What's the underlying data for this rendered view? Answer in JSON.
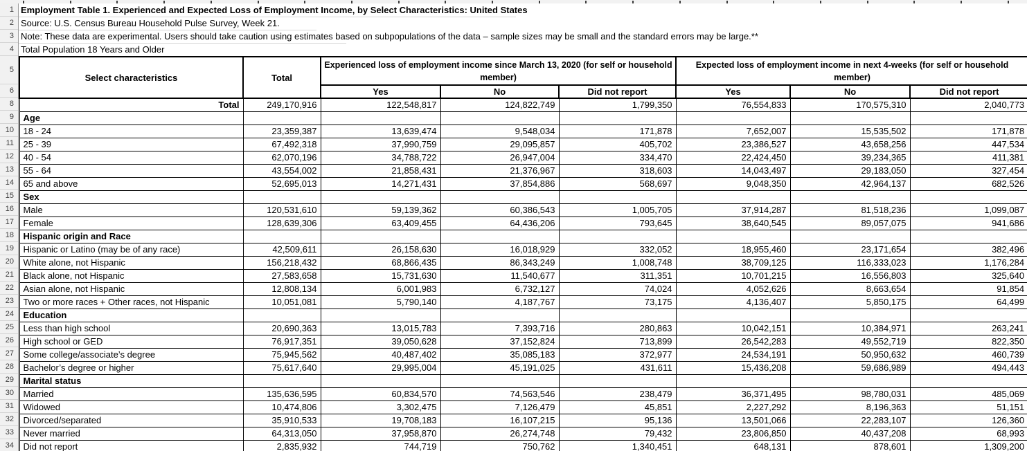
{
  "colors": {
    "table_border": "#000000",
    "gutter_bg": "#f1f1f1",
    "gutter_border": "#9a9a9a",
    "gutter_text": "#3f3f3f",
    "faint_gridline": "#d8d8d8",
    "cell_bg": "#ffffff"
  },
  "sheet": {
    "visible_row_numbers": [
      1,
      2,
      3,
      4,
      5,
      6,
      8,
      9,
      10,
      11,
      12,
      13,
      14,
      15,
      16,
      17,
      18,
      19,
      20,
      21,
      22,
      23,
      24,
      25,
      26,
      27,
      28,
      29,
      30,
      31,
      32,
      33,
      34
    ],
    "top_rows": {
      "title": "Employment Table 1. Experienced and Expected Loss of Employment Income, by Select Characteristics: United States",
      "source": "Source: U.S. Census Bureau Household Pulse Survey, Week 21.",
      "note": "Note: These data are experimental. Users should take caution using estimates based on subpopulations of the data – sample sizes may be small and the standard errors may be large.**",
      "population": "Total Population 18 Years and Older"
    },
    "header": {
      "select_characteristics": "Select characteristics",
      "total": "Total",
      "experienced_group": "Experienced loss of employment income since March 13, 2020 (for self or household member)",
      "expected_group": "Expected loss of employment income in next 4-weeks (for self or household member)",
      "sub_headers": [
        "Yes",
        "No",
        "Did not report",
        "Yes",
        "No",
        "Did not report"
      ]
    },
    "rows": [
      {
        "n": 8,
        "type": "total",
        "label": "Total",
        "values": [
          "249,170,916",
          "122,548,817",
          "124,822,749",
          "1,799,350",
          "76,554,833",
          "170,575,310",
          "2,040,773"
        ]
      },
      {
        "n": 9,
        "type": "section",
        "label": "Age"
      },
      {
        "n": 10,
        "type": "item",
        "label": "18 - 24",
        "values": [
          "23,359,387",
          "13,639,474",
          "9,548,034",
          "171,878",
          "7,652,007",
          "15,535,502",
          "171,878"
        ]
      },
      {
        "n": 11,
        "type": "item",
        "label": "25 - 39",
        "values": [
          "67,492,318",
          "37,990,759",
          "29,095,857",
          "405,702",
          "23,386,527",
          "43,658,256",
          "447,534"
        ]
      },
      {
        "n": 12,
        "type": "item",
        "label": "40 - 54",
        "values": [
          "62,070,196",
          "34,788,722",
          "26,947,004",
          "334,470",
          "22,424,450",
          "39,234,365",
          "411,381"
        ]
      },
      {
        "n": 13,
        "type": "item",
        "label": "55 - 64",
        "values": [
          "43,554,002",
          "21,858,431",
          "21,376,967",
          "318,603",
          "14,043,497",
          "29,183,050",
          "327,454"
        ]
      },
      {
        "n": 14,
        "type": "item",
        "label": "65 and above",
        "values": [
          "52,695,013",
          "14,271,431",
          "37,854,886",
          "568,697",
          "9,048,350",
          "42,964,137",
          "682,526"
        ]
      },
      {
        "n": 15,
        "type": "section",
        "label": "Sex"
      },
      {
        "n": 16,
        "type": "item",
        "label": "Male",
        "values": [
          "120,531,610",
          "59,139,362",
          "60,386,543",
          "1,005,705",
          "37,914,287",
          "81,518,236",
          "1,099,087"
        ]
      },
      {
        "n": 17,
        "type": "item",
        "label": "Female",
        "values": [
          "128,639,306",
          "63,409,455",
          "64,436,206",
          "793,645",
          "38,640,545",
          "89,057,075",
          "941,686"
        ]
      },
      {
        "n": 18,
        "type": "section",
        "label": "Hispanic origin and Race"
      },
      {
        "n": 19,
        "type": "item",
        "label": "Hispanic or Latino (may be of any race)",
        "values": [
          "42,509,611",
          "26,158,630",
          "16,018,929",
          "332,052",
          "18,955,460",
          "23,171,654",
          "382,496"
        ]
      },
      {
        "n": 20,
        "type": "item",
        "label": "White alone, not Hispanic",
        "values": [
          "156,218,432",
          "68,866,435",
          "86,343,249",
          "1,008,748",
          "38,709,125",
          "116,333,023",
          "1,176,284"
        ]
      },
      {
        "n": 21,
        "type": "item",
        "label": "Black alone, not Hispanic",
        "values": [
          "27,583,658",
          "15,731,630",
          "11,540,677",
          "311,351",
          "10,701,215",
          "16,556,803",
          "325,640"
        ]
      },
      {
        "n": 22,
        "type": "item",
        "label": "Asian alone, not Hispanic",
        "values": [
          "12,808,134",
          "6,001,983",
          "6,732,127",
          "74,024",
          "4,052,626",
          "8,663,654",
          "91,854"
        ]
      },
      {
        "n": 23,
        "type": "item",
        "label": "Two or more races + Other races, not Hispanic",
        "values": [
          "10,051,081",
          "5,790,140",
          "4,187,767",
          "73,175",
          "4,136,407",
          "5,850,175",
          "64,499"
        ]
      },
      {
        "n": 24,
        "type": "section",
        "label": "Education"
      },
      {
        "n": 25,
        "type": "item",
        "label": "Less than high school",
        "values": [
          "20,690,363",
          "13,015,783",
          "7,393,716",
          "280,863",
          "10,042,151",
          "10,384,971",
          "263,241"
        ]
      },
      {
        "n": 26,
        "type": "item",
        "label": "High school or GED",
        "values": [
          "76,917,351",
          "39,050,628",
          "37,152,824",
          "713,899",
          "26,542,283",
          "49,552,719",
          "822,350"
        ]
      },
      {
        "n": 27,
        "type": "item",
        "label": "Some college/associate’s degree",
        "values": [
          "75,945,562",
          "40,487,402",
          "35,085,183",
          "372,977",
          "24,534,191",
          "50,950,632",
          "460,739"
        ]
      },
      {
        "n": 28,
        "type": "item",
        "label": "Bachelor’s degree or higher",
        "values": [
          "75,617,640",
          "29,995,004",
          "45,191,025",
          "431,611",
          "15,436,208",
          "59,686,989",
          "494,443"
        ]
      },
      {
        "n": 29,
        "type": "section",
        "label": "Marital status"
      },
      {
        "n": 30,
        "type": "item",
        "label": "Married",
        "values": [
          "135,636,595",
          "60,834,570",
          "74,563,546",
          "238,479",
          "36,371,495",
          "98,780,031",
          "485,069"
        ]
      },
      {
        "n": 31,
        "type": "item",
        "label": "Widowed",
        "values": [
          "10,474,806",
          "3,302,475",
          "7,126,479",
          "45,851",
          "2,227,292",
          "8,196,363",
          "51,151"
        ]
      },
      {
        "n": 32,
        "type": "item",
        "label": "Divorced/separated",
        "values": [
          "35,910,533",
          "19,708,183",
          "16,107,215",
          "95,136",
          "13,501,066",
          "22,283,107",
          "126,360"
        ]
      },
      {
        "n": 33,
        "type": "item",
        "label": "Never married",
        "values": [
          "64,313,050",
          "37,958,870",
          "26,274,748",
          "79,432",
          "23,806,850",
          "40,437,208",
          "68,993"
        ]
      },
      {
        "n": 34,
        "type": "item",
        "label": "Did not report",
        "values": [
          "2,835,932",
          "744,719",
          "750,762",
          "1,340,451",
          "648,131",
          "878,601",
          "1,309,200"
        ]
      }
    ]
  }
}
